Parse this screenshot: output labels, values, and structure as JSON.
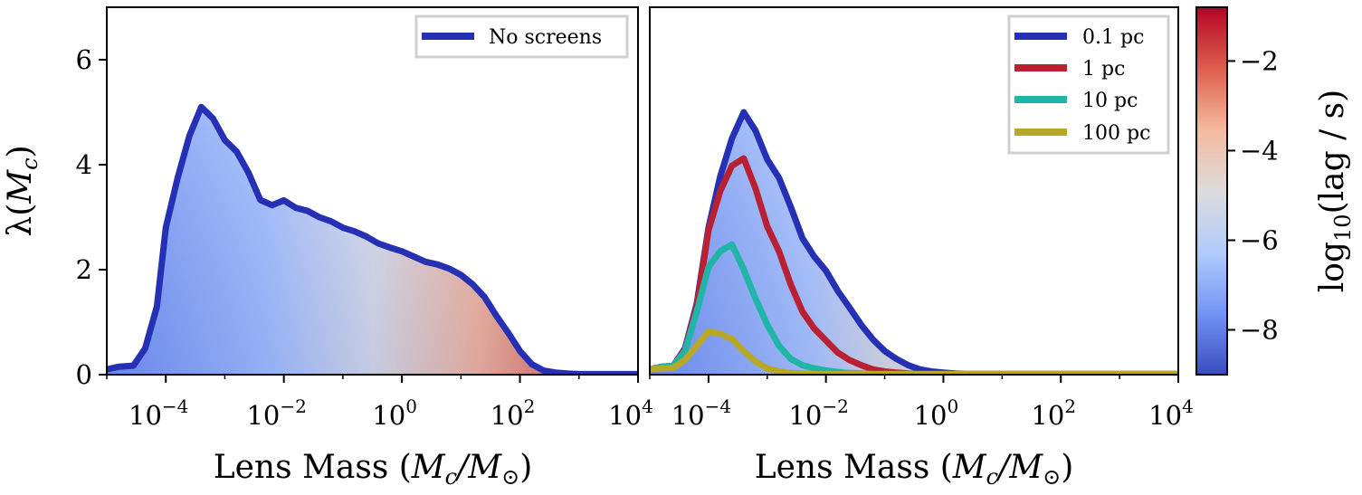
{
  "chart_data": [
    {
      "type": "area",
      "panel": "left",
      "xscale": "log",
      "xlim_exp": [
        -5,
        4
      ],
      "ylim": [
        0,
        7
      ],
      "xticks_exp": [
        -4,
        -2,
        0,
        2,
        4
      ],
      "yticks": [
        0,
        2,
        4,
        6
      ],
      "xlabel": "Lens Mass (M_c/M_⊙)",
      "ylabel": "λ(M_c)",
      "legend_position": "upper right",
      "series": [
        {
          "name": "No screens",
          "color": "#2530b4",
          "fill": "colormap-gradient (coolwarm by log10 lag)",
          "x_exp": [
            -5,
            -4.8,
            -4.55,
            -4.35,
            -4.15,
            -4.0,
            -3.8,
            -3.6,
            -3.4,
            -3.2,
            -3.0,
            -2.8,
            -2.6,
            -2.4,
            -2.2,
            -2.0,
            -1.8,
            -1.6,
            -1.4,
            -1.2,
            -1.0,
            -0.8,
            -0.6,
            -0.4,
            -0.2,
            0.0,
            0.2,
            0.4,
            0.6,
            0.8,
            1.0,
            1.2,
            1.4,
            1.6,
            1.8,
            2.0,
            2.2,
            2.4,
            2.6,
            2.8,
            3.0,
            3.2,
            3.4,
            3.6,
            3.8,
            4.0
          ],
          "y": [
            0.1,
            0.15,
            0.17,
            0.5,
            1.3,
            2.8,
            3.75,
            4.55,
            5.1,
            4.88,
            4.47,
            4.25,
            3.85,
            3.33,
            3.23,
            3.32,
            3.18,
            3.12,
            3.0,
            2.92,
            2.8,
            2.73,
            2.63,
            2.5,
            2.42,
            2.35,
            2.25,
            2.15,
            2.1,
            2.02,
            1.9,
            1.72,
            1.48,
            1.12,
            0.8,
            0.45,
            0.2,
            0.08,
            0.04,
            0.02,
            0.01,
            0.01,
            0.01,
            0.01,
            0.01,
            0.01
          ]
        }
      ]
    },
    {
      "type": "area",
      "panel": "right",
      "xscale": "log",
      "xlim_exp": [
        -5,
        4
      ],
      "ylim": [
        0,
        7
      ],
      "xticks_exp": [
        -4,
        -2,
        0,
        2,
        4
      ],
      "xlabel": "Lens Mass (M_c/M_⊙)",
      "legend_position": "upper right",
      "series": [
        {
          "name": "0.1 pc",
          "color": "#2530b4",
          "fill": "colormap-gradient (coolwarm by log10 lag)",
          "x_exp": [
            -5,
            -4.8,
            -4.6,
            -4.4,
            -4.2,
            -4.0,
            -3.8,
            -3.6,
            -3.4,
            -3.2,
            -3.0,
            -2.8,
            -2.6,
            -2.4,
            -2.2,
            -2.0,
            -1.8,
            -1.6,
            -1.4,
            -1.2,
            -1.0,
            -0.8,
            -0.6,
            -0.4,
            -0.2,
            0.0,
            0.2,
            0.4,
            0.6,
            0.8,
            1.0,
            1.5,
            2.0,
            3.0,
            4.0
          ],
          "y": [
            0.1,
            0.15,
            0.17,
            0.5,
            1.35,
            2.8,
            3.78,
            4.5,
            5.0,
            4.65,
            4.1,
            3.75,
            3.2,
            2.6,
            2.25,
            1.98,
            1.6,
            1.28,
            0.95,
            0.67,
            0.45,
            0.3,
            0.18,
            0.1,
            0.06,
            0.04,
            0.02,
            0.01,
            0.01,
            0.01,
            0.01,
            0.01,
            0.01,
            0.01,
            0.01
          ]
        },
        {
          "name": "1 pc",
          "color": "#b82132",
          "x_exp": [
            -5,
            -4.8,
            -4.6,
            -4.4,
            -4.2,
            -4.0,
            -3.8,
            -3.6,
            -3.4,
            -3.2,
            -3.0,
            -2.8,
            -2.6,
            -2.4,
            -2.2,
            -2.0,
            -1.8,
            -1.6,
            -1.4,
            -1.2,
            -1.0,
            -0.8,
            -0.6,
            -0.4,
            -0.2,
            0.0,
            0.5,
            1.0,
            2.0,
            3.0,
            4.0
          ],
          "y": [
            0.1,
            0.15,
            0.17,
            0.48,
            1.3,
            2.75,
            3.5,
            3.98,
            4.12,
            3.55,
            2.82,
            2.35,
            1.72,
            1.2,
            0.88,
            0.65,
            0.42,
            0.28,
            0.18,
            0.1,
            0.06,
            0.04,
            0.02,
            0.01,
            0.01,
            0.01,
            0.01,
            0.01,
            0.01,
            0.01,
            0.01
          ]
        },
        {
          "name": "10 pc",
          "color": "#20b5a6",
          "x_exp": [
            -5,
            -4.8,
            -4.6,
            -4.4,
            -4.2,
            -4.0,
            -3.8,
            -3.6,
            -3.4,
            -3.2,
            -3.0,
            -2.8,
            -2.6,
            -2.4,
            -2.2,
            -2.0,
            -1.8,
            -1.6,
            -1.4,
            -1.2,
            -1.0,
            -0.5,
            0.0,
            1.0,
            2.0,
            3.0,
            4.0
          ],
          "y": [
            0.1,
            0.15,
            0.17,
            0.45,
            1.2,
            2.05,
            2.35,
            2.48,
            2.0,
            1.45,
            0.95,
            0.55,
            0.3,
            0.18,
            0.12,
            0.08,
            0.05,
            0.03,
            0.02,
            0.01,
            0.01,
            0.01,
            0.01,
            0.01,
            0.01,
            0.01,
            0.01
          ]
        },
        {
          "name": "100 pc",
          "color": "#b8a828",
          "x_exp": [
            -5,
            -4.8,
            -4.6,
            -4.4,
            -4.2,
            -4.0,
            -3.8,
            -3.6,
            -3.4,
            -3.2,
            -3.0,
            -2.8,
            -2.6,
            -2.4,
            -2.2,
            -2.0,
            -1.5,
            -1.0,
            0.0,
            1.0,
            2.0,
            3.0,
            4.0
          ],
          "y": [
            0.1,
            0.12,
            0.13,
            0.28,
            0.55,
            0.82,
            0.78,
            0.68,
            0.45,
            0.25,
            0.12,
            0.06,
            0.03,
            0.02,
            0.01,
            0.01,
            0.01,
            0.01,
            0.01,
            0.01,
            0.01,
            0.01,
            0.01
          ]
        }
      ]
    }
  ],
  "axes": {
    "x_tick_base": "10",
    "x_tick_exps": [
      "−4",
      "−2",
      "0",
      "2",
      "4"
    ],
    "y_tick_labels": [
      "0",
      "2",
      "4",
      "6"
    ],
    "xlabel_main": "Lens Mass (",
    "xlabel_math_m": "M",
    "xlabel_math_sub": "c",
    "xlabel_math_slash": "/",
    "xlabel_math_sun": "M",
    "xlabel_math_sunsub": "⊙",
    "xlabel_close": ")",
    "ylabel_lambda": "λ(",
    "ylabel_m": "M",
    "ylabel_sub": "c",
    "ylabel_close": ")"
  },
  "colorbar": {
    "label_prefix": "log",
    "label_sub": "10",
    "label_suffix": "(lag / s)",
    "ticks": [
      "−2",
      "−4",
      "−6",
      "−8"
    ],
    "tick_values": [
      -2,
      -4,
      -6,
      -8
    ],
    "range": [
      -9,
      -0.8
    ],
    "colormap": "coolwarm",
    "stops": [
      "#3b4cc0",
      "#7396f5",
      "#b0cbfc",
      "#dddcdc",
      "#f6b89c",
      "#de604d",
      "#b40426"
    ]
  }
}
